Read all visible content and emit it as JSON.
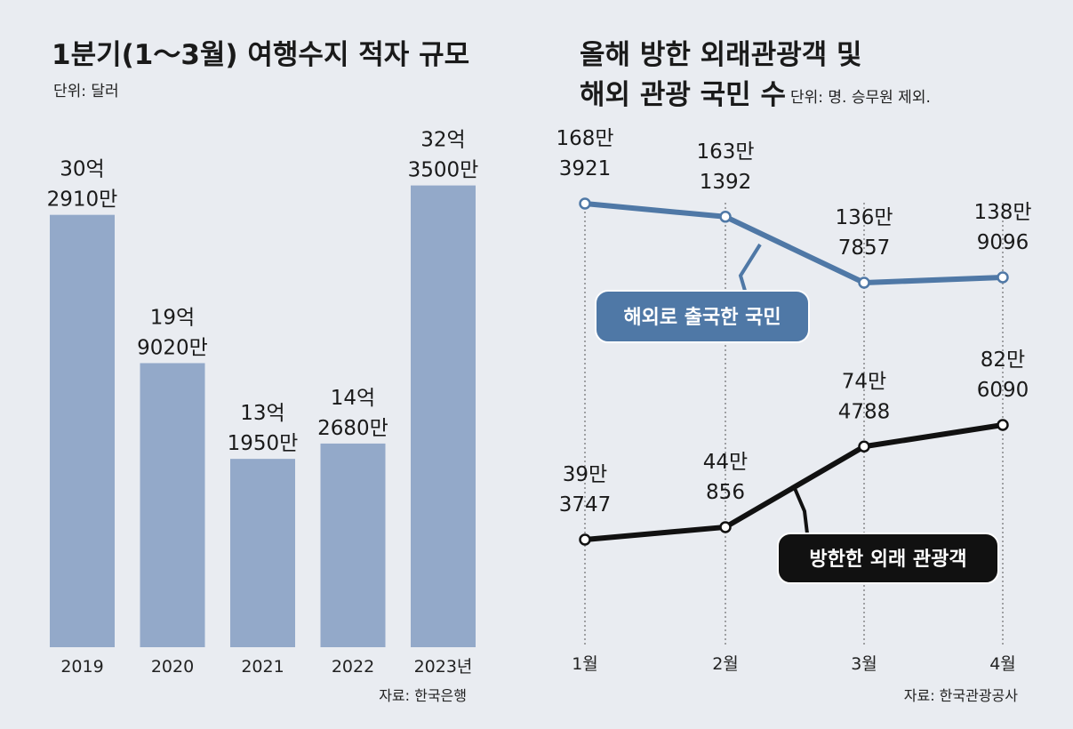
{
  "colors": {
    "background": "#e9ecf1",
    "bar": "#93a9c9",
    "outbound_line": "#4f78a6",
    "inbound_line": "#111111",
    "pill_outbound": "#4f78a6",
    "pill_inbound": "#111111"
  },
  "chart_data": [
    {
      "type": "bar",
      "title": "1분기(1～3월) 여행수지 적자 규모",
      "unit": "단위: 달러",
      "categories": [
        "2019",
        "2020",
        "2021",
        "2022",
        "2023년"
      ],
      "values": [
        3029100000,
        1990200000,
        1319500000,
        1426800000,
        3235000000
      ],
      "value_labels": [
        [
          "30억",
          "2910만"
        ],
        [
          "19억",
          "9020만"
        ],
        [
          "13억",
          "1950만"
        ],
        [
          "14억",
          "2680만"
        ],
        [
          "32억",
          "3500만"
        ]
      ],
      "ylim": [
        0,
        3600000000
      ],
      "source": "자료: 한국은행"
    },
    {
      "type": "line",
      "title_lines": [
        "올해 방한 외래관광객 및",
        "해외 관광 국민 수"
      ],
      "unit": "단위: 명. 승무원 제외.",
      "x": [
        "1월",
        "2월",
        "3월",
        "4월"
      ],
      "series": [
        {
          "name": "해외로 출국한 국민",
          "values": [
            1683921,
            1631392,
            1367857,
            1389096
          ],
          "value_labels": [
            [
              "168만",
              "3921"
            ],
            [
              "163만",
              "1392"
            ],
            [
              "136만",
              "7857"
            ],
            [
              "138만",
              "9096"
            ]
          ]
        },
        {
          "name": "방한한 외래 관광객",
          "values": [
            393747,
            440856,
            744788,
            826090
          ],
          "value_labels": [
            [
              "39만",
              "3747"
            ],
            [
              "44만",
              "856"
            ],
            [
              "74만",
              "4788"
            ],
            [
              "82만",
              "6090"
            ]
          ]
        }
      ],
      "source": "자료: 한국관광공사"
    }
  ]
}
